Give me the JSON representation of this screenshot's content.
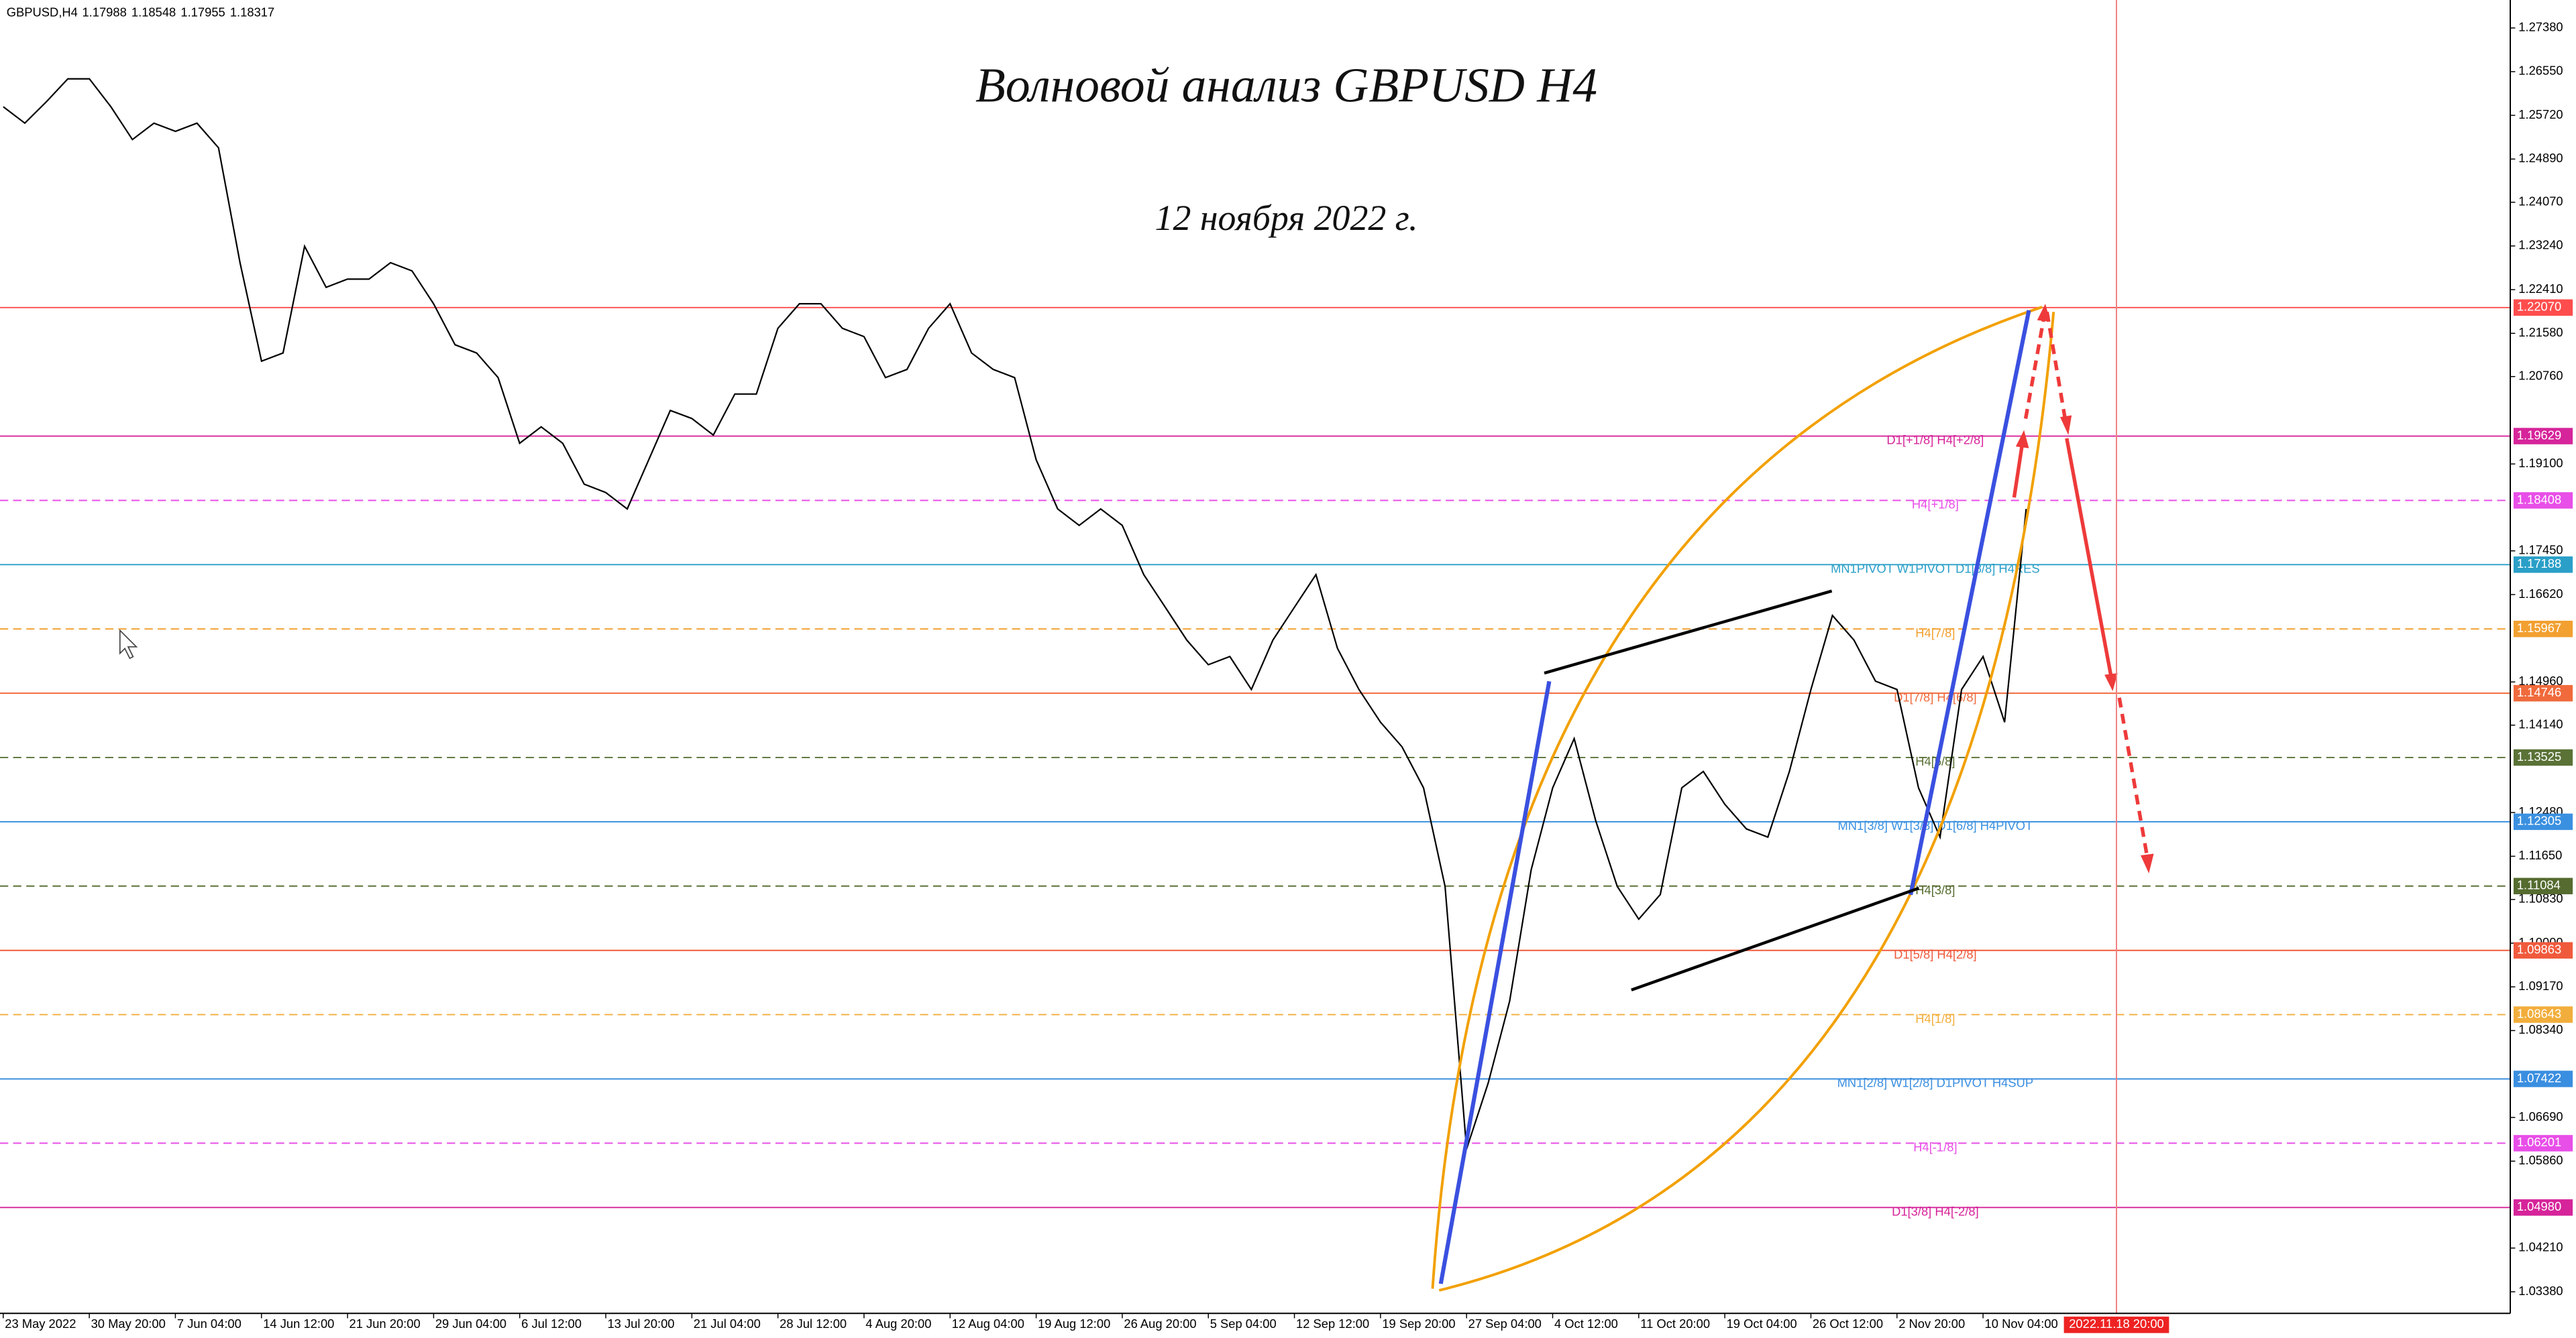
{
  "chart_data": {
    "type": "line",
    "title": "Волновой анализ GBPUSD H4",
    "subtitle": "12 ноября 2022 г.",
    "symbol": "GBPUSD,H4",
    "ohlc": [
      1.17988,
      1.18548,
      1.17955,
      1.18317
    ],
    "xlim": [
      -0.15,
      116.5
    ],
    "ylim": [
      1.0297,
      1.2791
    ],
    "xticks": [
      {
        "value": 0,
        "label": "23 May 2022"
      },
      {
        "value": 4,
        "label": "30 May 20:00"
      },
      {
        "value": 8,
        "label": "7 Jun 04:00"
      },
      {
        "value": 12,
        "label": "14 Jun 12:00"
      },
      {
        "value": 16,
        "label": "21 Jun 20:00"
      },
      {
        "value": 20,
        "label": "29 Jun 04:00"
      },
      {
        "value": 24,
        "label": "6 Jul 12:00"
      },
      {
        "value": 28,
        "label": "13 Jul 20:00"
      },
      {
        "value": 32,
        "label": "21 Jul 04:00"
      },
      {
        "value": 36,
        "label": "28 Jul 12:00"
      },
      {
        "value": 40,
        "label": "4 Aug 20:00"
      },
      {
        "value": 44,
        "label": "12 Aug 04:00"
      },
      {
        "value": 48,
        "label": "19 Aug 12:00"
      },
      {
        "value": 52,
        "label": "26 Aug 20:00"
      },
      {
        "value": 56,
        "label": "5 Sep 04:00"
      },
      {
        "value": 60,
        "label": "12 Sep 12:00"
      },
      {
        "value": 64,
        "label": "19 Sep 20:00"
      },
      {
        "value": 68,
        "label": "27 Sep 04:00"
      },
      {
        "value": 72,
        "label": "4 Oct 12:00"
      },
      {
        "value": 76,
        "label": "11 Oct 20:00"
      },
      {
        "value": 80,
        "label": "19 Oct 04:00"
      },
      {
        "value": 84,
        "label": "26 Oct 12:00"
      },
      {
        "value": 88,
        "label": "2 Nov 20:00"
      },
      {
        "value": 92,
        "label": "10 Nov 04:00"
      }
    ],
    "cursor": {
      "value": 98.2,
      "label": "2022.11.18 20:00"
    },
    "yticks": [
      {
        "value": 1.2738,
        "label": "1.27380"
      },
      {
        "value": 1.2655,
        "label": "1.26550"
      },
      {
        "value": 1.2572,
        "label": "1.25720"
      },
      {
        "value": 1.2489,
        "label": "1.24890"
      },
      {
        "value": 1.2407,
        "label": "1.24070"
      },
      {
        "value": 1.2324,
        "label": "1.23240"
      },
      {
        "value": 1.2241,
        "label": "1.22410"
      },
      {
        "value": 1.2158,
        "label": "1.21580"
      },
      {
        "value": 1.2076,
        "label": "1.20760"
      },
      {
        "value": 1.191,
        "label": "1.19100"
      },
      {
        "value": 1.1745,
        "label": "1.17450"
      },
      {
        "value": 1.1662,
        "label": "1.16620"
      },
      {
        "value": 1.1496,
        "label": "1.14960"
      },
      {
        "value": 1.1414,
        "label": "1.14140"
      },
      {
        "value": 1.1248,
        "label": "1.12480"
      },
      {
        "value": 1.1165,
        "label": "1.11650"
      },
      {
        "value": 1.1083,
        "label": "1.10830"
      },
      {
        "value": 1.1,
        "label": "1.10000"
      },
      {
        "value": 1.0917,
        "label": "1.09170"
      },
      {
        "value": 1.0834,
        "label": "1.08340"
      },
      {
        "value": 1.0669,
        "label": "1.06690"
      },
      {
        "value": 1.0586,
        "label": "1.05860"
      },
      {
        "value": 1.0421,
        "label": "1.04210"
      },
      {
        "value": 1.0338,
        "label": "1.03380"
      }
    ],
    "series": [
      {
        "color": "#000000",
        "values": [
          1.25884,
          1.25572,
          1.25977,
          1.26414,
          1.26414,
          1.25884,
          1.2526,
          1.25572,
          1.25416,
          1.25572,
          1.25105,
          1.22923,
          1.21052,
          1.21208,
          1.23234,
          1.22455,
          1.22611,
          1.22611,
          1.22923,
          1.22767,
          1.22143,
          1.21364,
          1.21208,
          1.20741,
          1.19494,
          1.19806,
          1.19494,
          1.18715,
          1.18559,
          1.18247,
          1.19182,
          1.20117,
          1.19962,
          1.1965,
          1.20429,
          1.20429,
          1.21676,
          1.22143,
          1.22143,
          1.21676,
          1.2152,
          1.20741,
          1.20897,
          1.21676,
          1.22143,
          1.21208,
          1.20897,
          1.20741,
          1.19182,
          1.18247,
          1.17935,
          1.18247,
          1.17935,
          1.17,
          1.16377,
          1.15754,
          1.15286,
          1.15442,
          1.14818,
          1.15754,
          1.16377,
          1.17,
          1.15598,
          1.14818,
          1.14195,
          1.13728,
          1.12948,
          1.11078,
          1.06091,
          1.07338,
          1.08896,
          1.1139,
          1.12948,
          1.13883,
          1.12325,
          1.11078,
          1.10455,
          1.10922,
          1.12948,
          1.1326,
          1.12637,
          1.12169,
          1.12013,
          1.1326,
          1.14818,
          1.16221,
          1.15754,
          1.14974,
          1.14818,
          1.12948,
          1.12013,
          1.14818,
          1.15442,
          1.14195,
          1.18247
        ]
      }
    ],
    "levels": [
      {
        "value": 1.2207,
        "label": "1.22070",
        "color": "#ff4d4d",
        "dashed": false
      },
      {
        "value": 1.19629,
        "label": "1.19629",
        "name": "D1[+1/8] H4[+2/8]",
        "color": "#d6249a",
        "dashed": false
      },
      {
        "value": 1.18408,
        "label": "1.18408",
        "name": "H4[+1/8]",
        "color": "#e84ee8",
        "dashed": true
      },
      {
        "value": 1.17188,
        "label": "1.17188",
        "name": "MN1PIVOT W1PIVOT D1[8/8] H4RES",
        "color": "#2a9fc8",
        "dashed": false
      },
      {
        "value": 1.15967,
        "label": "1.15967",
        "name": "H4[7/8]",
        "color": "#f2a030",
        "dashed": true
      },
      {
        "value": 1.14746,
        "label": "1.14746",
        "name": "D1[7/8] H4[6/8]",
        "color": "#f06a3c",
        "dashed": false
      },
      {
        "value": 1.13525,
        "label": "1.13525",
        "name": "H4[5/8]",
        "color": "#5a7236",
        "dashed": true
      },
      {
        "value": 1.12305,
        "label": "1.12305",
        "name": "MN1[3/8] W1[3/8] D1[6/8] H4PIVOT",
        "color": "#3a90e0",
        "dashed": false
      },
      {
        "value": 1.11084,
        "label": "1.11084",
        "name": "H4[3/8]",
        "color": "#556b2f",
        "dashed": true
      },
      {
        "value": 1.09863,
        "label": "1.09863",
        "name": "D1[5/8] H4[2/8]",
        "color": "#f05a3c",
        "dashed": false
      },
      {
        "value": 1.08643,
        "label": "1.08643",
        "name": "H4[1/8]",
        "color": "#f2ae3c",
        "dashed": true
      },
      {
        "value": 1.07422,
        "label": "1.07422",
        "name": "MN1[2/8] W1[2/8] D1PIVOT H4SUP",
        "color": "#3a8ee0",
        "dashed": false
      },
      {
        "value": 1.06201,
        "label": "1.06201",
        "name": "H4[-1/8]",
        "color": "#e84ee8",
        "dashed": true
      },
      {
        "value": 1.0498,
        "label": "1.04980",
        "name": "D1[3/8] H4[-2/8]",
        "color": "#d6249a",
        "dashed": false
      }
    ]
  }
}
